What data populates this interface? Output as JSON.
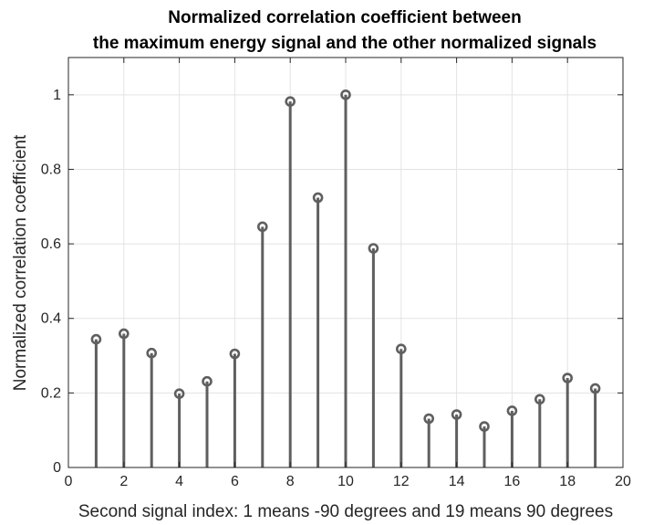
{
  "chart_data": {
    "type": "stem",
    "title": [
      "Normalized correlation coefficient between",
      "the maximum energy signal and the other normalized signals"
    ],
    "xlabel": "Second signal index: 1 means -90 degrees and 19 means 90 degrees",
    "ylabel": "Normalized correlation coefficient",
    "xlim": [
      0,
      20
    ],
    "ylim": [
      0,
      1.1
    ],
    "xticks": [
      0,
      2,
      4,
      6,
      8,
      10,
      12,
      14,
      16,
      18,
      20
    ],
    "xtick_labels": [
      "0",
      "2",
      "4",
      "6",
      "8",
      "10",
      "12",
      "14",
      "16",
      "18",
      "20"
    ],
    "yticks": [
      0,
      0.2,
      0.4,
      0.6,
      0.8,
      1
    ],
    "ytick_labels": [
      "0",
      "0.2",
      "0.4",
      "0.6",
      "0.8",
      "1"
    ],
    "grid": true,
    "x": [
      1,
      2,
      3,
      4,
      5,
      6,
      7,
      8,
      9,
      10,
      11,
      12,
      13,
      14,
      15,
      16,
      17,
      18,
      19
    ],
    "y": [
      0.344,
      0.359,
      0.307,
      0.198,
      0.231,
      0.305,
      0.646,
      0.982,
      0.724,
      1.0,
      0.588,
      0.318,
      0.131,
      0.142,
      0.11,
      0.152,
      0.183,
      0.24,
      0.212
    ],
    "colors": {
      "stem": "#5f5f5f",
      "grid": "#e3e3e3",
      "axis": "#262626",
      "background": "#ffffff"
    }
  }
}
